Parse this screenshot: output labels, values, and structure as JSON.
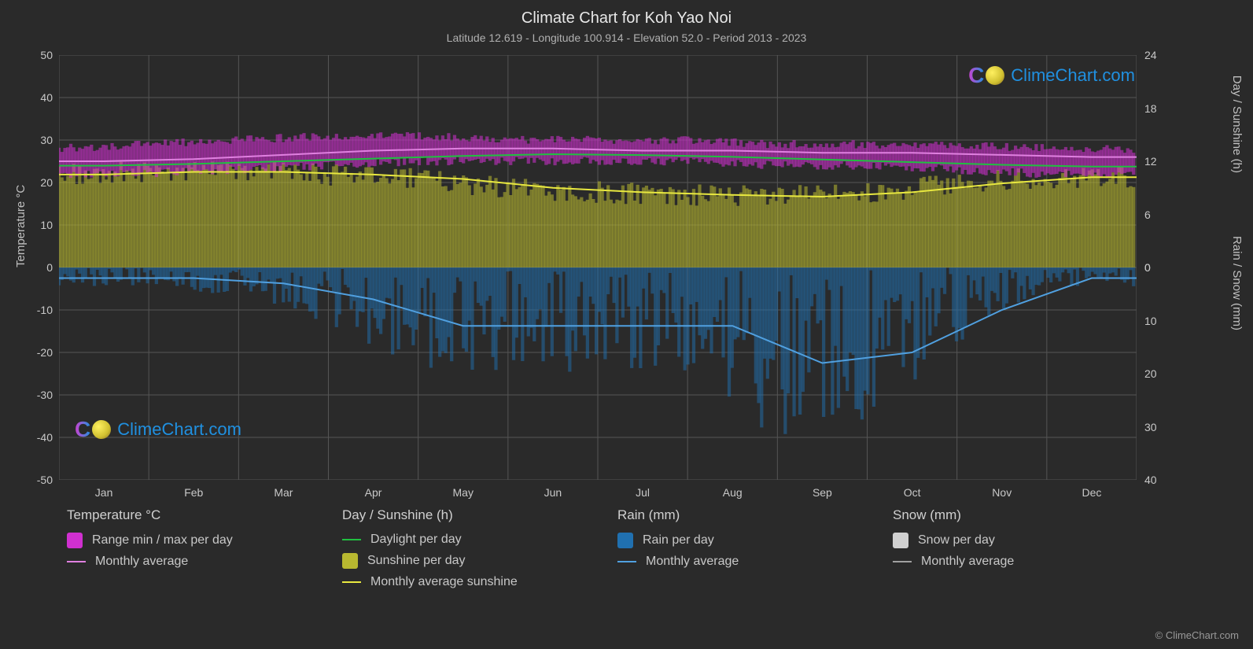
{
  "title": "Climate Chart for Koh Yao Noi",
  "subtitle": "Latitude 12.619 - Longitude 100.914 - Elevation 52.0 - Period 2013 - 2023",
  "title_fontsize": 20,
  "subtitle_fontsize": 14,
  "background_color": "#2a2a2a",
  "grid_color": "#555555",
  "text_color": "#c8c8c8",
  "axis_label_fontsize": 15,
  "tick_fontsize": 14,
  "legend_title_fontsize": 17,
  "legend_item_fontsize": 16,
  "watermark_text": "ClimeChart.com",
  "watermark_fontsize": 22,
  "copyright": "© ClimeChart.com",
  "left_axis": {
    "label": "Temperature °C",
    "min": -50,
    "max": 50,
    "tick_step": 10,
    "ticks": [
      -50,
      -40,
      -30,
      -20,
      -10,
      0,
      10,
      20,
      30,
      40,
      50
    ]
  },
  "right_axis_top": {
    "label": "Day / Sunshine (h)",
    "min": 0,
    "max": 24,
    "tick_step": 6,
    "ticks": [
      0,
      6,
      12,
      18,
      24
    ]
  },
  "right_axis_bot": {
    "label": "Rain / Snow (mm)",
    "min": 0,
    "max": 40,
    "tick_step": 10,
    "ticks": [
      0,
      10,
      20,
      30,
      40
    ]
  },
  "months": [
    "Jan",
    "Feb",
    "Mar",
    "Apr",
    "May",
    "Jun",
    "Jul",
    "Aug",
    "Sep",
    "Oct",
    "Nov",
    "Dec"
  ],
  "colors": {
    "temp_range": "#d030d0",
    "temp_avg_line": "#e080e0",
    "daylight_line": "#20c040",
    "sunshine_fill": "#b8b830",
    "sunshine_line": "#e8e840",
    "rain_fill": "#2070b0",
    "rain_line": "#50a0e0",
    "snow_fill": "#d0d0d0",
    "snow_line": "#a0a0a0"
  },
  "series": {
    "temp_min": [
      22,
      22,
      23,
      24,
      25,
      25,
      25,
      25,
      24,
      24,
      23,
      22
    ],
    "temp_max": [
      28,
      29,
      30,
      31,
      31,
      30,
      30,
      30,
      29,
      29,
      29,
      28
    ],
    "temp_avg": [
      25,
      25.5,
      26.5,
      27.5,
      28,
      28,
      27.5,
      27.5,
      27,
      27,
      26.5,
      26
    ],
    "daylight_h": [
      11.5,
      11.7,
      12.0,
      12.3,
      12.6,
      12.8,
      12.7,
      12.5,
      12.2,
      11.9,
      11.6,
      11.4
    ],
    "sunshine_h": [
      10.5,
      10.8,
      10.8,
      10.5,
      10.0,
      9.0,
      8.5,
      8.2,
      8.0,
      8.5,
      9.5,
      10.2
    ],
    "rain_mm": [
      2,
      2,
      3,
      6,
      11,
      11,
      11,
      11,
      18,
      16,
      8,
      2
    ],
    "snow_mm": [
      0,
      0,
      0,
      0,
      0,
      0,
      0,
      0,
      0,
      0,
      0,
      0
    ]
  },
  "legend": {
    "col1": {
      "title": "Temperature °C",
      "items": [
        {
          "type": "swatch",
          "color_key": "temp_range",
          "label": "Range min / max per day"
        },
        {
          "type": "line",
          "color_key": "temp_avg_line",
          "label": "Monthly average"
        }
      ]
    },
    "col2": {
      "title": "Day / Sunshine (h)",
      "items": [
        {
          "type": "line",
          "color_key": "daylight_line",
          "label": "Daylight per day"
        },
        {
          "type": "swatch",
          "color_key": "sunshine_fill",
          "label": "Sunshine per day"
        },
        {
          "type": "line",
          "color_key": "sunshine_line",
          "label": "Monthly average sunshine"
        }
      ]
    },
    "col3": {
      "title": "Rain (mm)",
      "items": [
        {
          "type": "swatch",
          "color_key": "rain_fill",
          "label": "Rain per day"
        },
        {
          "type": "line",
          "color_key": "rain_line",
          "label": "Monthly average"
        }
      ]
    },
    "col4": {
      "title": "Snow (mm)",
      "items": [
        {
          "type": "swatch",
          "color_key": "snow_fill",
          "label": "Snow per day"
        },
        {
          "type": "line",
          "color_key": "snow_line",
          "label": "Monthly average"
        }
      ]
    }
  }
}
